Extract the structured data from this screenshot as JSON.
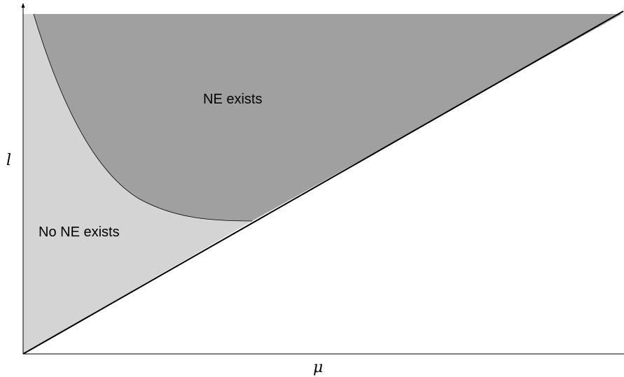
{
  "diagram": {
    "labels": {
      "y_axis": "l",
      "x_axis": "μ",
      "upper_region": "NE exists",
      "lower_region": "No NE exists"
    },
    "colors": {
      "background": "#ffffff",
      "upper_region_fill": "#a0a0a0",
      "lower_region_fill": "#d4d4d4",
      "lines": "#000000"
    }
  }
}
